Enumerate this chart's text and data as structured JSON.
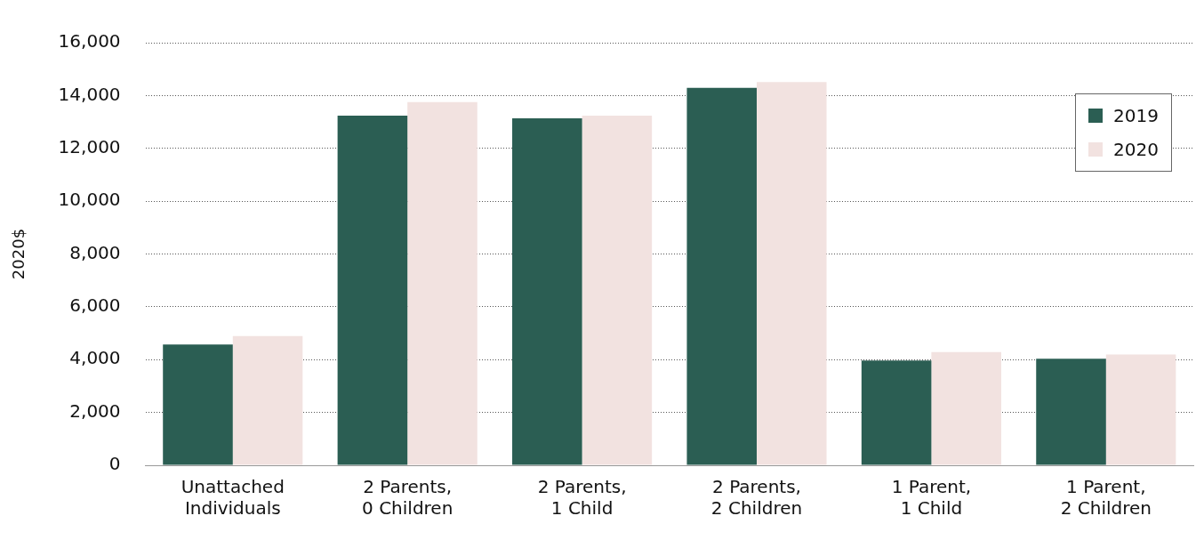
{
  "chart_data": {
    "type": "bar",
    "ylabel": "2020$",
    "categories": [
      "Unattached Individuals",
      "2 Parents, 0 Children",
      "2 Parents, 1 Child",
      "2 Parents, 2 Children",
      "1 Parent, 1 Child",
      "1 Parent, 2 Children"
    ],
    "series": [
      {
        "name": "2019",
        "color": "#2b5e53",
        "values": [
          4570,
          13240,
          13140,
          14290,
          3970,
          4030
        ]
      },
      {
        "name": "2020",
        "color": "#f2e2e0",
        "values": [
          4890,
          13750,
          13240,
          14510,
          4290,
          4190
        ]
      }
    ],
    "ylim": [
      0,
      16000
    ],
    "yticks": [
      0,
      {
        "value": 2000,
        "label": "2,000"
      },
      {
        "value": 4000,
        "label": "4,000"
      },
      {
        "value": 6000,
        "label": "6,000"
      },
      {
        "value": 8000,
        "label": "8,000"
      },
      {
        "value": 10000,
        "label": "10,000"
      },
      {
        "value": 12000,
        "label": "12,000"
      },
      {
        "value": 14000,
        "label": "14,000"
      },
      {
        "value": 16000,
        "label": "16,000"
      }
    ],
    "grid": "y",
    "legend": "top right"
  }
}
